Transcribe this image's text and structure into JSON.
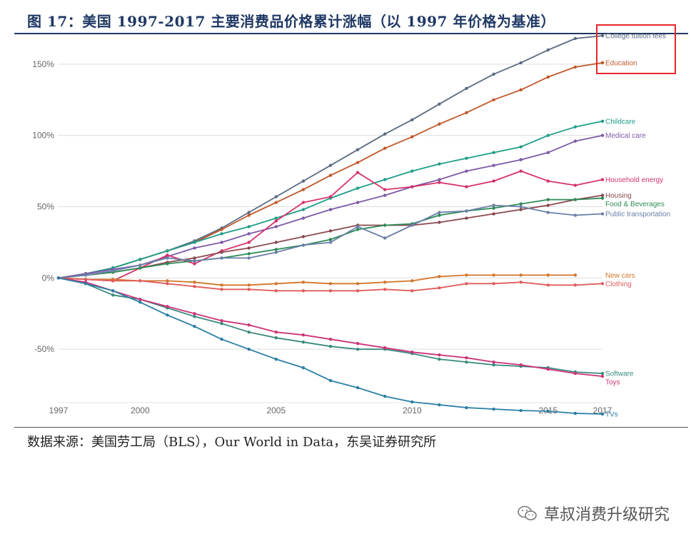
{
  "title": "图 17：美国 1997-2017 主要消费品价格累计涨幅（以 1997 年价格为基准）",
  "source": "数据来源：美国劳工局（BLS），Our World in Data，东吴证券研究所",
  "watermark": "草叔消费升级研究",
  "colors": {
    "title": "#1f3864",
    "highlight_box": "#e8262b",
    "grid": "#dddddd"
  },
  "chart_data": {
    "type": "line",
    "title": "",
    "xlabel": "",
    "ylabel": "",
    "xlim": [
      1997,
      2017
    ],
    "ylim": [
      -97,
      172
    ],
    "x_ticks": [
      1997,
      2000,
      2005,
      2010,
      2015,
      2017
    ],
    "y_ticks": [
      150,
      100,
      50,
      0,
      -50
    ],
    "y_tick_labels": [
      "150%",
      "100%",
      "50%",
      "0%",
      "-50%"
    ],
    "highlighted_series": [
      "College tuition fees",
      "Education"
    ],
    "series": [
      {
        "name": "College tuition fees",
        "color": "#5b6b82",
        "x": [
          1997,
          1998,
          1999,
          2000,
          2001,
          2002,
          2003,
          2004,
          2005,
          2006,
          2007,
          2008,
          2009,
          2010,
          2011,
          2012,
          2013,
          2014,
          2015,
          2016,
          2017
        ],
        "values": [
          0,
          3,
          7,
          13,
          19,
          26,
          35,
          46,
          57,
          68,
          79,
          90,
          101,
          111,
          122,
          133,
          143,
          151,
          160,
          168,
          170
        ]
      },
      {
        "name": "Education",
        "color": "#c0582b",
        "x": [
          1997,
          1998,
          1999,
          2000,
          2001,
          2002,
          2003,
          2004,
          2005,
          2006,
          2007,
          2008,
          2009,
          2010,
          2011,
          2012,
          2013,
          2014,
          2015,
          2016,
          2017
        ],
        "values": [
          0,
          3,
          7,
          13,
          19,
          25,
          34,
          44,
          53,
          62,
          72,
          81,
          91,
          99,
          108,
          116,
          125,
          132,
          141,
          148,
          151
        ]
      },
      {
        "name": "Childcare",
        "color": "#1f9e89",
        "x": [
          1997,
          1998,
          1999,
          2000,
          2001,
          2002,
          2003,
          2004,
          2005,
          2006,
          2007,
          2008,
          2009,
          2010,
          2011,
          2012,
          2013,
          2014,
          2015,
          2016,
          2017
        ],
        "values": [
          0,
          3,
          7,
          13,
          19,
          25,
          31,
          36,
          42,
          48,
          56,
          63,
          69,
          75,
          80,
          84,
          88,
          92,
          100,
          106,
          110
        ]
      },
      {
        "name": "Medical care",
        "color": "#7e5aa8",
        "x": [
          1997,
          1998,
          1999,
          2000,
          2001,
          2002,
          2003,
          2004,
          2005,
          2006,
          2007,
          2008,
          2009,
          2010,
          2011,
          2012,
          2013,
          2014,
          2015,
          2016,
          2017
        ],
        "values": [
          0,
          3,
          6,
          9,
          15,
          21,
          25,
          31,
          36,
          42,
          48,
          53,
          58,
          64,
          69,
          75,
          79,
          83,
          88,
          96,
          100
        ]
      },
      {
        "name": "Household energy",
        "color": "#d6336c",
        "x": [
          1997,
          1998,
          1999,
          2000,
          2001,
          2002,
          2003,
          2004,
          2005,
          2006,
          2007,
          2008,
          2009,
          2010,
          2011,
          2012,
          2013,
          2014,
          2015,
          2016,
          2017
        ],
        "values": [
          0,
          -1,
          -2,
          7,
          16,
          10,
          19,
          25,
          40,
          53,
          57,
          74,
          62,
          64,
          67,
          64,
          68,
          75,
          68,
          65,
          69
        ]
      },
      {
        "name": "Housing",
        "color": "#8a4a4f",
        "x": [
          1997,
          1998,
          1999,
          2000,
          2001,
          2002,
          2003,
          2004,
          2005,
          2006,
          2007,
          2008,
          2009,
          2010,
          2011,
          2012,
          2013,
          2014,
          2015,
          2016,
          2017
        ],
        "values": [
          0,
          2,
          4,
          7,
          11,
          14,
          18,
          21,
          25,
          29,
          33,
          37,
          37,
          37,
          39,
          42,
          45,
          48,
          51,
          55,
          58
        ]
      },
      {
        "name": "Food & Beverages",
        "color": "#2e8b57",
        "x": [
          1997,
          1998,
          1999,
          2000,
          2001,
          2002,
          2003,
          2004,
          2005,
          2006,
          2007,
          2008,
          2009,
          2010,
          2011,
          2012,
          2013,
          2014,
          2015,
          2016,
          2017
        ],
        "values": [
          0,
          2,
          4,
          7,
          10,
          12,
          14,
          17,
          20,
          23,
          27,
          34,
          37,
          38,
          44,
          47,
          49,
          52,
          55,
          55,
          56
        ]
      },
      {
        "name": "Public transportation",
        "color": "#6a7fa8",
        "x": [
          1997,
          1998,
          1999,
          2000,
          2001,
          2002,
          2003,
          2004,
          2005,
          2006,
          2007,
          2008,
          2009,
          2010,
          2011,
          2012,
          2013,
          2014,
          2015,
          2016,
          2017
        ],
        "values": [
          0,
          2,
          5,
          9,
          14,
          12,
          14,
          14,
          18,
          23,
          25,
          36,
          28,
          37,
          46,
          47,
          51,
          50,
          46,
          44,
          45
        ]
      },
      {
        "name": "New cars",
        "color": "#d2762b",
        "x": [
          1997,
          1998,
          1999,
          2000,
          2001,
          2002,
          2003,
          2004,
          2005,
          2006,
          2007,
          2008,
          2009,
          2010,
          2011,
          2012,
          2013,
          2014,
          2015,
          2016
        ],
        "values": [
          0,
          -1,
          -1,
          -2,
          -2,
          -3,
          -5,
          -5,
          -4,
          -3,
          -4,
          -4,
          -3,
          -2,
          1,
          2,
          2,
          2,
          2,
          2
        ]
      },
      {
        "name": "Clothing",
        "color": "#e05d5d",
        "x": [
          1997,
          1998,
          1999,
          2000,
          2001,
          2002,
          2003,
          2004,
          2005,
          2006,
          2007,
          2008,
          2009,
          2010,
          2011,
          2012,
          2013,
          2014,
          2015,
          2016,
          2017
        ],
        "values": [
          0,
          -1,
          -2,
          -2,
          -4,
          -6,
          -8,
          -8,
          -9,
          -9,
          -9,
          -9,
          -8,
          -9,
          -7,
          -4,
          -4,
          -3,
          -5,
          -5,
          -4
        ]
      },
      {
        "name": "Software",
        "color": "#3a8a7e",
        "x": [
          1997,
          1998,
          1999,
          2000,
          2001,
          2002,
          2003,
          2004,
          2005,
          2006,
          2007,
          2008,
          2009,
          2010,
          2011,
          2012,
          2013,
          2014,
          2015,
          2016,
          2017
        ],
        "values": [
          0,
          -4,
          -12,
          -15,
          -21,
          -27,
          -32,
          -38,
          -42,
          -45,
          -48,
          -50,
          -50,
          -53,
          -57,
          -59,
          -61,
          -62,
          -63,
          -66,
          -67
        ]
      },
      {
        "name": "Toys",
        "color": "#cc3377",
        "x": [
          1997,
          1998,
          1999,
          2000,
          2001,
          2002,
          2003,
          2004,
          2005,
          2006,
          2007,
          2008,
          2009,
          2010,
          2011,
          2012,
          2013,
          2014,
          2015,
          2016,
          2017
        ],
        "values": [
          0,
          -3,
          -9,
          -15,
          -20,
          -25,
          -30,
          -33,
          -38,
          -40,
          -43,
          -46,
          -49,
          -52,
          -54,
          -56,
          -59,
          -61,
          -64,
          -67,
          -69
        ]
      },
      {
        "name": "TVs",
        "color": "#2a7fa5",
        "x": [
          1997,
          1998,
          1999,
          2000,
          2001,
          2002,
          2003,
          2004,
          2005,
          2006,
          2007,
          2008,
          2009,
          2010,
          2011,
          2012,
          2013,
          2014,
          2015,
          2016,
          2017
        ],
        "values": [
          0,
          -4,
          -9,
          -17,
          -26,
          -34,
          -43,
          -50,
          -57,
          -63,
          -72,
          -77,
          -83,
          -87,
          -89,
          -91,
          -92,
          -93,
          -93.5,
          -95,
          -95.5
        ]
      }
    ]
  }
}
